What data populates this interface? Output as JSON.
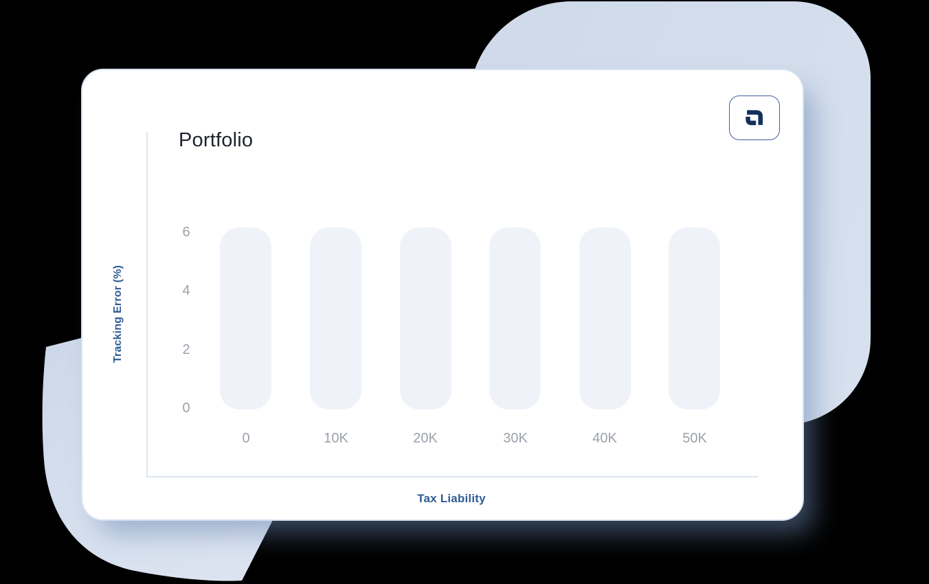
{
  "card": {
    "title": "Portfolio"
  },
  "logo": {
    "icon": "interlocked-brackets-logo"
  },
  "chart_data": {
    "type": "bar",
    "title": "Portfolio",
    "xlabel": "Tax Liability",
    "ylabel": "Tracking Error (%)",
    "categories": [
      "0",
      "10K",
      "20K",
      "30K",
      "40K",
      "50K"
    ],
    "values": [
      6,
      6,
      6,
      6,
      6,
      6
    ],
    "appearance": "empty-state placeholder bars, all equal height",
    "yticks": [
      "0",
      "2",
      "4",
      "6"
    ],
    "ylim": [
      0,
      6
    ],
    "grid": false,
    "legend": "none",
    "colors": {
      "bar_fill": "#eff3f9",
      "axis_line": "#dde6f2",
      "tick_text": "#9aa1ab",
      "axis_label_text": "#2e5c94",
      "title_text": "#20242e",
      "logo_navy": "#14305c",
      "card_border": "#d6e2f1",
      "blob_blue": "#cfdae9"
    }
  }
}
